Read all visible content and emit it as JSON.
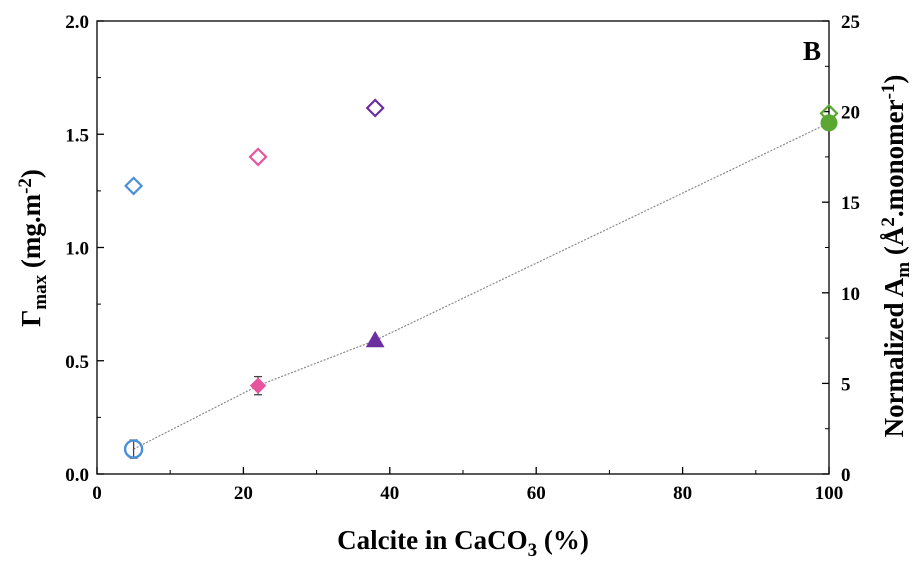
{
  "chart_data": {
    "type": "scatter",
    "panel_label": "B",
    "xlabel": {
      "main": "Calcite in CaCO",
      "sub": "3",
      "after": " (%)"
    },
    "ylabel_left": {
      "main": "Γ",
      "sub": "max",
      "after": " (mg.m",
      "sup": "-2",
      "end": ")"
    },
    "ylabel_right": {
      "pre": "Normalized A",
      "sub": "m",
      "mid": " (Å",
      "sup1": "2",
      "mid2": ".monomer",
      "sup2": "-1",
      "end": ")"
    },
    "xlim": [
      0,
      100
    ],
    "ylim_left": [
      0,
      2.0
    ],
    "ylim_right": [
      0,
      25
    ],
    "xticks": [
      "0",
      "20",
      "40",
      "60",
      "80",
      "100"
    ],
    "yticks_left": [
      "0.0",
      "0.5",
      "1.0",
      "1.5",
      "2.0"
    ],
    "yticks_right": [
      "0",
      "5",
      "10",
      "15",
      "20",
      "25"
    ],
    "series": [
      {
        "axis": "right",
        "marker": "open-diamond",
        "points": [
          {
            "x": 5,
            "y": 15.9,
            "color": "#4a90d9"
          },
          {
            "x": 22,
            "y": 17.5,
            "color": "#e8559f"
          },
          {
            "x": 38,
            "y": 20.2,
            "color": "#6b2fa0"
          },
          {
            "x": 100,
            "y": 19.9,
            "color": "#5aa832"
          }
        ]
      },
      {
        "axis": "left",
        "marker": "filled",
        "trendline": true,
        "trendline_color": "#8a8a8a",
        "points": [
          {
            "x": 5,
            "y": 0.11,
            "err": 0.04,
            "color": "#4a90d9",
            "shape": "open-circle"
          },
          {
            "x": 22,
            "y": 0.39,
            "err": 0.04,
            "color": "#e8559f",
            "shape": "diamond"
          },
          {
            "x": 38,
            "y": 0.59,
            "err": 0,
            "color": "#6b2fa0",
            "shape": "triangle"
          },
          {
            "x": 100,
            "y": 1.55,
            "err": 0,
            "color": "#5aa832",
            "shape": "circle"
          }
        ]
      }
    ]
  }
}
